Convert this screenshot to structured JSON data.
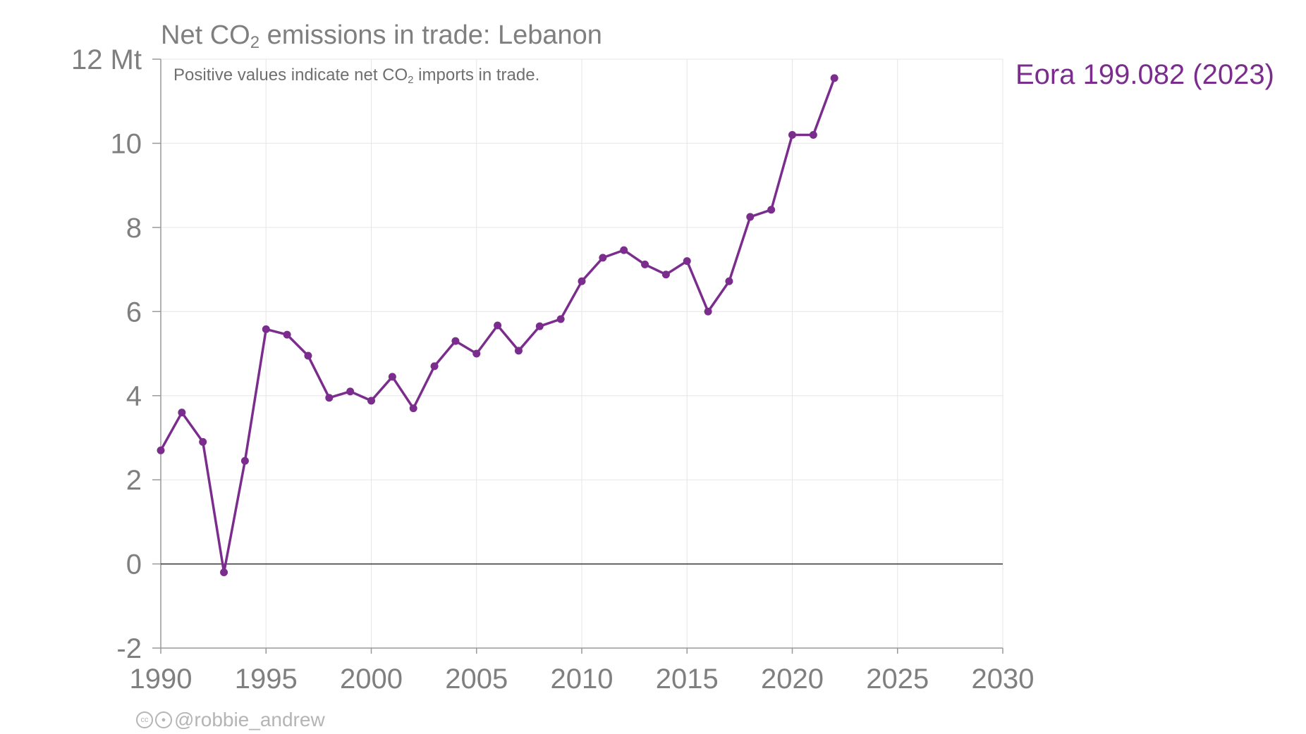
{
  "title": {
    "prefix": "Net CO",
    "subscript": "2",
    "suffix": " emissions in trade: Lebanon"
  },
  "subtitle": {
    "prefix": "Positive values indicate net CO",
    "subscript": "2",
    "suffix": " imports in trade."
  },
  "credit": {
    "handle": "@robbie_andrew",
    "icons": [
      "creative-commons-icon",
      "attribution-icon"
    ]
  },
  "colors": {
    "series": "#7b2d8e",
    "text": "#7f7f7f",
    "grid": "#e6e6e6",
    "axis": "#999999",
    "zero_line": "#333333"
  },
  "chart_data": {
    "type": "line",
    "title": "Net CO2 emissions in trade: Lebanon",
    "subtitle": "Positive values indicate net CO2 imports in trade.",
    "xlim": [
      1990,
      2030
    ],
    "ylim": [
      -2,
      12
    ],
    "x_ticks": [
      1990,
      1995,
      2000,
      2005,
      2010,
      2015,
      2020,
      2025,
      2030
    ],
    "y_ticks": [
      -2,
      0,
      2,
      4,
      6,
      8,
      10,
      12
    ],
    "y_tick_labels": [
      "-2",
      "0",
      "2",
      "4",
      "6",
      "8",
      "10",
      "12 Mt"
    ],
    "grid": true,
    "series": [
      {
        "name": "Eora 199.082 (2023)",
        "color": "#7b2d8e",
        "x": [
          1990,
          1991,
          1992,
          1993,
          1994,
          1995,
          1996,
          1997,
          1998,
          1999,
          2000,
          2001,
          2002,
          2003,
          2004,
          2005,
          2006,
          2007,
          2008,
          2009,
          2010,
          2011,
          2012,
          2013,
          2014,
          2015,
          2016,
          2017,
          2018,
          2019,
          2020,
          2021,
          2022
        ],
        "y": [
          2.7,
          3.6,
          2.9,
          -0.2,
          2.45,
          5.58,
          5.45,
          4.95,
          3.95,
          4.1,
          3.88,
          4.45,
          3.7,
          4.7,
          5.3,
          5.0,
          5.67,
          5.07,
          5.65,
          5.82,
          6.72,
          7.28,
          7.46,
          7.12,
          6.88,
          7.2,
          6.0,
          6.72,
          8.25,
          8.42,
          10.2,
          10.2,
          11.55
        ]
      }
    ]
  }
}
